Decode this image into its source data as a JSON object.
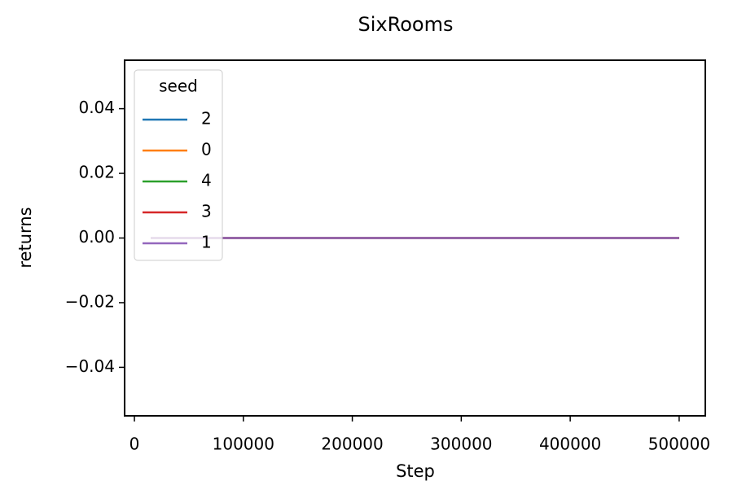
{
  "chart_data": {
    "type": "line",
    "title": "SixRooms",
    "x_label": "Step",
    "y_label": "returns",
    "x": [
      15000,
      500000
    ],
    "series": [
      {
        "name": "2",
        "color": "#1f77b4",
        "values": [
          0,
          0
        ]
      },
      {
        "name": "0",
        "color": "#ff7f0e",
        "values": [
          0,
          0
        ]
      },
      {
        "name": "4",
        "color": "#2ca02c",
        "values": [
          0,
          0
        ]
      },
      {
        "name": "3",
        "color": "#d62728",
        "values": [
          0,
          0
        ]
      },
      {
        "name": "1",
        "color": "#9467bd",
        "values": [
          0,
          0
        ]
      }
    ],
    "legend_title": "seed",
    "legend_position": "upper left",
    "xlim": [
      -9000,
      524000
    ],
    "xticks": [
      0,
      100000,
      200000,
      300000,
      400000,
      500000
    ],
    "ylim": [
      -0.055,
      0.055
    ],
    "yticks": [
      {
        "value": -0.04,
        "label": "−0.04"
      },
      {
        "value": -0.02,
        "label": "−0.02"
      },
      {
        "value": 0,
        "label": "0.00"
      },
      0.02,
      0.04
    ],
    "grid": false
  }
}
